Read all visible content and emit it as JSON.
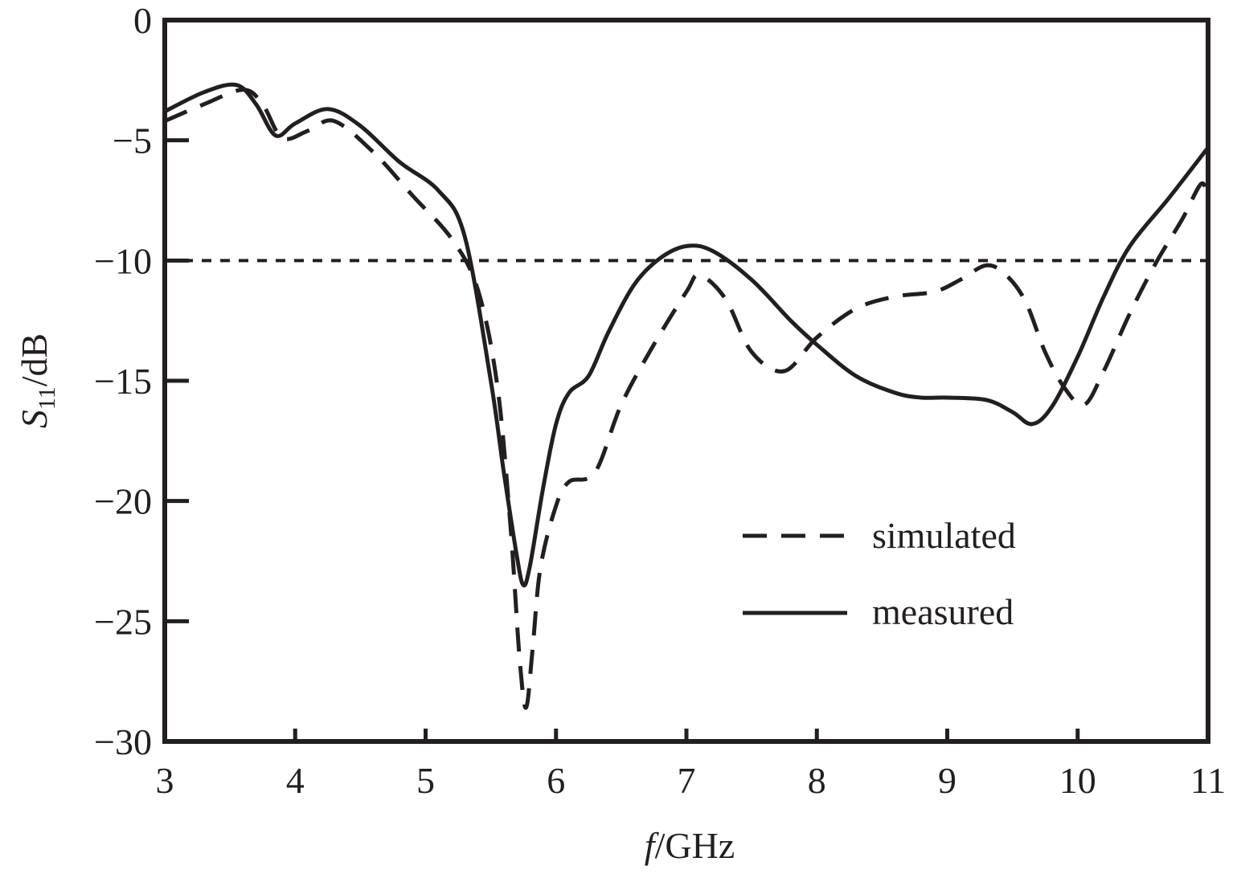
{
  "chart_data": {
    "type": "line",
    "xlabel": {
      "italic": "f",
      "rest": "/GHz"
    },
    "ylabel": {
      "italic": "S",
      "sub": "11",
      "rest": "/dB"
    },
    "xlim": [
      3,
      11
    ],
    "ylim": [
      -30,
      0
    ],
    "xticks": [
      3,
      4,
      5,
      6,
      7,
      8,
      9,
      10,
      11
    ],
    "yticks": [
      0,
      -5,
      -10,
      -15,
      -20,
      -25,
      -30
    ],
    "ytick_labels": [
      "0",
      "−5",
      "−10",
      "−15",
      "−20",
      "−25",
      "−30"
    ],
    "grid": false,
    "legend_position": "lower-right",
    "reference_line": {
      "y": -10,
      "style": "dotted"
    },
    "series": [
      {
        "name": "simulated",
        "style": "dashed",
        "x": [
          3.0,
          3.3,
          3.6,
          3.75,
          3.9,
          4.1,
          4.3,
          4.6,
          4.9,
          5.2,
          5.4,
          5.55,
          5.65,
          5.72,
          5.77,
          5.82,
          5.88,
          6.0,
          6.1,
          6.3,
          6.5,
          6.75,
          7.0,
          7.1,
          7.3,
          7.5,
          7.75,
          8.0,
          8.3,
          8.6,
          8.9,
          9.1,
          9.3,
          9.45,
          9.6,
          9.75,
          9.9,
          10.05,
          10.2,
          10.4,
          10.6,
          10.8,
          10.95,
          11.0
        ],
        "y": [
          -4.2,
          -3.5,
          -2.9,
          -3.5,
          -4.9,
          -4.6,
          -4.2,
          -5.5,
          -7.3,
          -9.1,
          -11.2,
          -15.2,
          -21.0,
          -26.5,
          -28.6,
          -26.2,
          -22.8,
          -20.2,
          -19.2,
          -18.8,
          -16.0,
          -13.5,
          -11.3,
          -10.6,
          -11.6,
          -13.8,
          -14.6,
          -13.2,
          -12.0,
          -11.5,
          -11.3,
          -10.8,
          -10.2,
          -10.6,
          -11.7,
          -13.8,
          -15.3,
          -16.0,
          -14.6,
          -12.2,
          -10.1,
          -8.3,
          -6.8,
          -7.6
        ]
      },
      {
        "name": "measured",
        "style": "solid",
        "x": [
          3.0,
          3.3,
          3.55,
          3.7,
          3.85,
          4.0,
          4.25,
          4.5,
          4.8,
          5.1,
          5.3,
          5.5,
          5.6,
          5.7,
          5.75,
          5.8,
          5.9,
          6.0,
          6.1,
          6.25,
          6.4,
          6.6,
          6.8,
          7.0,
          7.2,
          7.5,
          7.8,
          8.0,
          8.3,
          8.6,
          8.8,
          9.0,
          9.3,
          9.5,
          9.65,
          9.8,
          10.0,
          10.2,
          10.4,
          10.7,
          11.0
        ],
        "y": [
          -3.8,
          -3.0,
          -2.7,
          -3.5,
          -4.8,
          -4.3,
          -3.7,
          -4.4,
          -5.9,
          -7.1,
          -9.0,
          -15.0,
          -18.8,
          -22.3,
          -23.5,
          -22.7,
          -19.5,
          -16.8,
          -15.5,
          -14.8,
          -13.0,
          -11.0,
          -9.9,
          -9.4,
          -9.6,
          -10.8,
          -12.5,
          -13.5,
          -14.8,
          -15.5,
          -15.7,
          -15.7,
          -15.8,
          -16.3,
          -16.8,
          -16.1,
          -14.0,
          -11.5,
          -9.4,
          -7.4,
          -5.3
        ]
      }
    ]
  }
}
